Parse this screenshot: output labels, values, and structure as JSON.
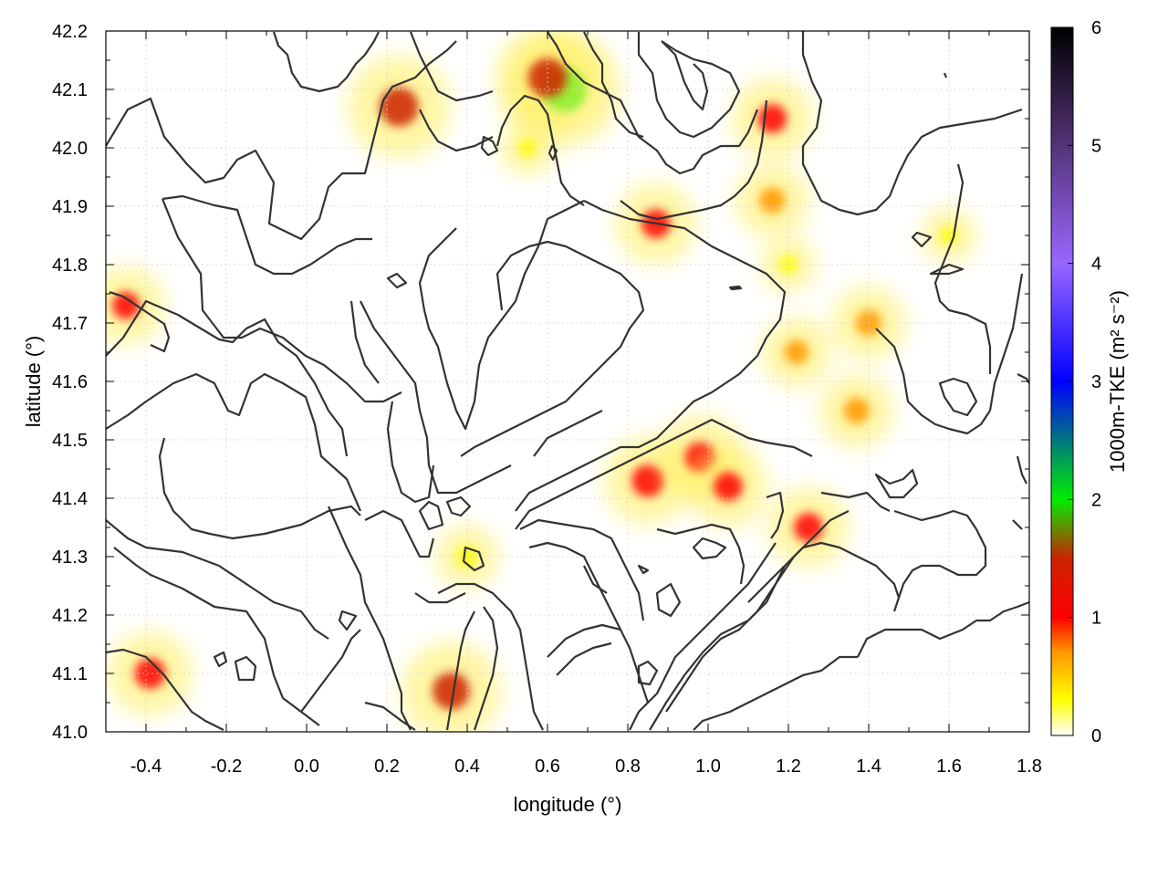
{
  "chart_data": {
    "type": "heatmap",
    "xlabel": "longitude (°)",
    "ylabel": "latitude (°)",
    "colorbar_label": "1000m-TKE (m² s⁻²)",
    "xlim": [
      -0.5,
      1.8
    ],
    "ylim": [
      41.0,
      42.2
    ],
    "x_ticks": [
      "-0.4",
      "-0.2",
      "0.0",
      "0.2",
      "0.4",
      "0.6",
      "0.8",
      "1.0",
      "1.2",
      "1.4",
      "1.6",
      "1.8"
    ],
    "x_tick_values": [
      -0.4,
      -0.2,
      0.0,
      0.2,
      0.4,
      0.6,
      0.8,
      1.0,
      1.2,
      1.4,
      1.6,
      1.8
    ],
    "y_ticks": [
      "41.0",
      "41.1",
      "41.2",
      "41.3",
      "41.4",
      "41.5",
      "41.6",
      "41.7",
      "41.8",
      "41.9",
      "42.0",
      "42.1",
      "42.2"
    ],
    "y_tick_values": [
      41.0,
      41.1,
      41.2,
      41.3,
      41.4,
      41.5,
      41.6,
      41.7,
      41.8,
      41.9,
      42.0,
      42.1,
      42.2
    ],
    "colorbar_range": [
      0,
      6
    ],
    "colorbar_ticks": [
      "0",
      "1",
      "2",
      "3",
      "4",
      "5",
      "6"
    ],
    "colorbar_tick_values": [
      0,
      1,
      2,
      3,
      4,
      5,
      6
    ],
    "colormap": [
      {
        "v": 0.0,
        "color": "#ffffff"
      },
      {
        "v": 0.3,
        "color": "#ffff00"
      },
      {
        "v": 0.7,
        "color": "#ff9900"
      },
      {
        "v": 1.0,
        "color": "#ff0000"
      },
      {
        "v": 1.5,
        "color": "#cc2200"
      },
      {
        "v": 2.0,
        "color": "#00ee00"
      },
      {
        "v": 3.0,
        "color": "#0000ff"
      },
      {
        "v": 4.0,
        "color": "#9966ff"
      },
      {
        "v": 5.0,
        "color": "#553377"
      },
      {
        "v": 6.0,
        "color": "#000000"
      }
    ],
    "grid": true,
    "hotspots": [
      {
        "lon": 0.85,
        "lat": 41.43,
        "tke": 1.3
      },
      {
        "lon": 0.98,
        "lat": 41.47,
        "tke": 1.2
      },
      {
        "lon": 1.05,
        "lat": 41.42,
        "tke": 1.1
      },
      {
        "lon": 1.25,
        "lat": 41.35,
        "tke": 1.1
      },
      {
        "lon": 1.37,
        "lat": 41.55,
        "tke": 0.9
      },
      {
        "lon": 1.4,
        "lat": 41.7,
        "tke": 0.9
      },
      {
        "lon": 1.22,
        "lat": 41.65,
        "tke": 0.8
      },
      {
        "lon": 0.64,
        "lat": 42.1,
        "tke": 2.0
      },
      {
        "lon": 0.6,
        "lat": 42.12,
        "tke": 1.7
      },
      {
        "lon": 0.23,
        "lat": 42.07,
        "tke": 1.7
      },
      {
        "lon": 0.36,
        "lat": 41.07,
        "tke": 1.6
      },
      {
        "lon": 1.16,
        "lat": 42.05,
        "tke": 1.1
      },
      {
        "lon": 0.87,
        "lat": 41.87,
        "tke": 1.1
      },
      {
        "lon": -0.45,
        "lat": 41.73,
        "tke": 1.0
      },
      {
        "lon": -0.39,
        "lat": 41.1,
        "tke": 1.2
      },
      {
        "lon": 1.16,
        "lat": 41.91,
        "tke": 0.9
      },
      {
        "lon": 0.4,
        "lat": 41.3,
        "tke": 0.6
      },
      {
        "lon": 1.6,
        "lat": 41.85,
        "tke": 0.4
      },
      {
        "lon": 0.55,
        "lat": 42.0,
        "tke": 0.4
      },
      {
        "lon": 1.2,
        "lat": 41.8,
        "tke": 0.4
      }
    ]
  }
}
